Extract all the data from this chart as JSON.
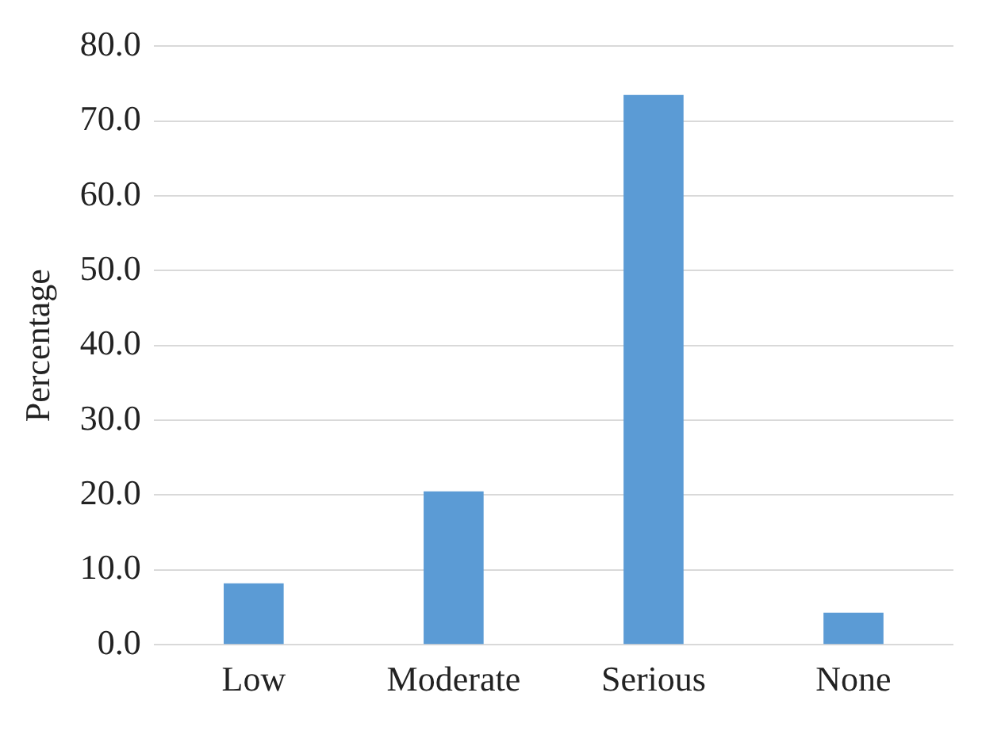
{
  "chart_data": {
    "type": "bar",
    "ylabel": "Percentage",
    "categories": [
      "Low",
      "Moderate",
      "Serious",
      "None"
    ],
    "values": [
      8.2,
      20.5,
      73.5,
      4.3
    ],
    "color": "#5b9bd5",
    "ylim": [
      0,
      80
    ],
    "yticks": [
      {
        "value": 0,
        "label": "0.0"
      },
      {
        "value": 10,
        "label": "10.0"
      },
      {
        "value": 20,
        "label": "20.0"
      },
      {
        "value": 30,
        "label": "30.0"
      },
      {
        "value": 40,
        "label": "40.0"
      },
      {
        "value": 50,
        "label": "50.0"
      },
      {
        "value": 60,
        "label": "60.0"
      },
      {
        "value": 70,
        "label": "70.0"
      },
      {
        "value": 80,
        "label": "80.0"
      }
    ],
    "grid": "y"
  }
}
